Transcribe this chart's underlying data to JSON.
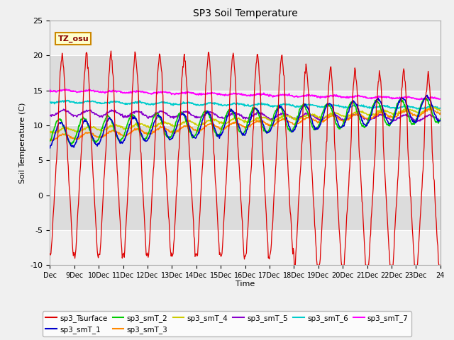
{
  "title": "SP3 Soil Temperature",
  "ylabel": "Soil Temperature (C)",
  "xlabel": "Time",
  "ylim": [
    -10,
    25
  ],
  "annotation_text": "TZ_osu",
  "annotation_bg": "#ffffcc",
  "annotation_border": "#cc8800",
  "x_tick_labels": [
    "Dec",
    "9Dec",
    "10Dec",
    "11Dec",
    "12Dec",
    "13Dec",
    "14Dec",
    "15Dec",
    "16Dec",
    "17Dec",
    "18Dec",
    "19Dec",
    "20Dec",
    "21Dec",
    "22Dec",
    "23Dec",
    "24"
  ],
  "bg_light": "#f0f0f0",
  "bg_dark": "#dcdcdc",
  "series_colors": {
    "sp3_Tsurface": "#dd0000",
    "sp3_smT_1": "#0000cc",
    "sp3_smT_2": "#00cc00",
    "sp3_smT_3": "#ff8800",
    "sp3_smT_4": "#cccc00",
    "sp3_smT_5": "#8800cc",
    "sp3_smT_6": "#00cccc",
    "sp3_smT_7": "#ff00ff"
  }
}
